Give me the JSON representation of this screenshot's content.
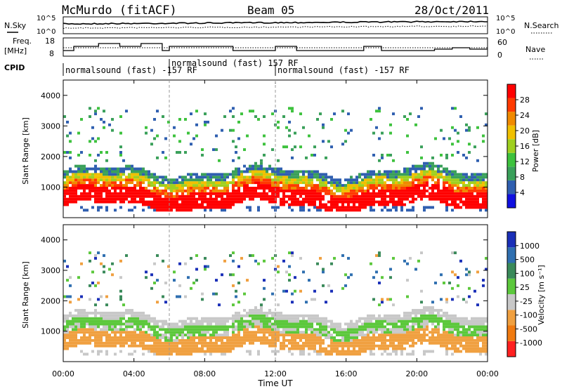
{
  "header": {
    "station": "McMurdo (fitACF)",
    "beam": "Beam 05",
    "date": "28/Oct/2011"
  },
  "noise_panel": {
    "left_label": "N.Sky",
    "right_label": "N.Search",
    "left_ticks": [
      "10^5",
      "10^0"
    ],
    "right_ticks": [
      "10^5",
      "10^0"
    ]
  },
  "freq_panel": {
    "left_label_line1": "Freq.",
    "left_label_line2": "[MHz]",
    "right_label": "Nave",
    "left_ticks": [
      "18",
      "8"
    ],
    "right_ticks": [
      "60",
      "0"
    ]
  },
  "cpid": {
    "label": "CPID",
    "segments": [
      {
        "start_hour": 0,
        "text": "normalsound (fast) -157 RF"
      },
      {
        "start_hour": 6,
        "text": "normalsound (fast) 157 RF"
      },
      {
        "start_hour": 12,
        "text": "normalsound (fast) -157 RF"
      }
    ]
  },
  "x_axis": {
    "label": "Time UT",
    "tick_labels": [
      "00:00",
      "04:00",
      "08:00",
      "12:00",
      "16:00",
      "20:00",
      "00:00"
    ]
  },
  "power_panel": {
    "ylabel": "Slant Range [km]",
    "y_ticks": [
      "4000",
      "3000",
      "2000",
      "1000"
    ],
    "colorbar_label": "Power [dB]",
    "colorbar_ticks": [
      "28",
      "24",
      "20",
      "16",
      "12",
      "8",
      "4"
    ],
    "colors": [
      "#1010e0",
      "#2f5fb0",
      "#3aa05a",
      "#3ec23e",
      "#9fd020",
      "#f0c000",
      "#f08a00",
      "#ff3a00",
      "#ff0000"
    ]
  },
  "velocity_panel": {
    "ylabel": "Slant Range [km]",
    "y_ticks": [
      "4000",
      "3000",
      "2000",
      "1000"
    ],
    "colorbar_label": "Velocity [m s⁻¹]",
    "colorbar_ticks": [
      "1000",
      "500",
      "100",
      "25",
      "-25",
      "-100",
      "-500",
      "-1000"
    ],
    "colors": [
      "#1a2fb8",
      "#2f6fb0",
      "#3a8a5a",
      "#5cc83c",
      "#c8c8c8",
      "#f0a040",
      "#f07a10",
      "#ff2020"
    ]
  },
  "chart_data": [
    {
      "type": "heatmap",
      "title": "Power",
      "x_range_hours": [
        0,
        24
      ],
      "ylim": [
        0,
        4500
      ],
      "colorbar_range": [
        0,
        30
      ],
      "bands": [
        {
          "range_km": [
            1300,
            1500
          ],
          "level_db": 8
        },
        {
          "range_km": [
            1100,
            1300
          ],
          "level_db": 14
        },
        {
          "range_km": [
            900,
            1100
          ],
          "level_db": 20
        },
        {
          "range_km": [
            700,
            900
          ],
          "level_db": 28
        }
      ]
    },
    {
      "type": "heatmap",
      "title": "Velocity",
      "x_range_hours": [
        0,
        24
      ],
      "ylim": [
        0,
        4500
      ],
      "colorbar_range": [
        -1000,
        1000
      ],
      "bands": [
        {
          "range_km": [
            1300,
            1500
          ],
          "level_ms": 0
        },
        {
          "range_km": [
            900,
            1300
          ],
          "level_ms": 100
        },
        {
          "range_km": [
            600,
            900
          ],
          "level_ms": -100
        }
      ]
    }
  ]
}
